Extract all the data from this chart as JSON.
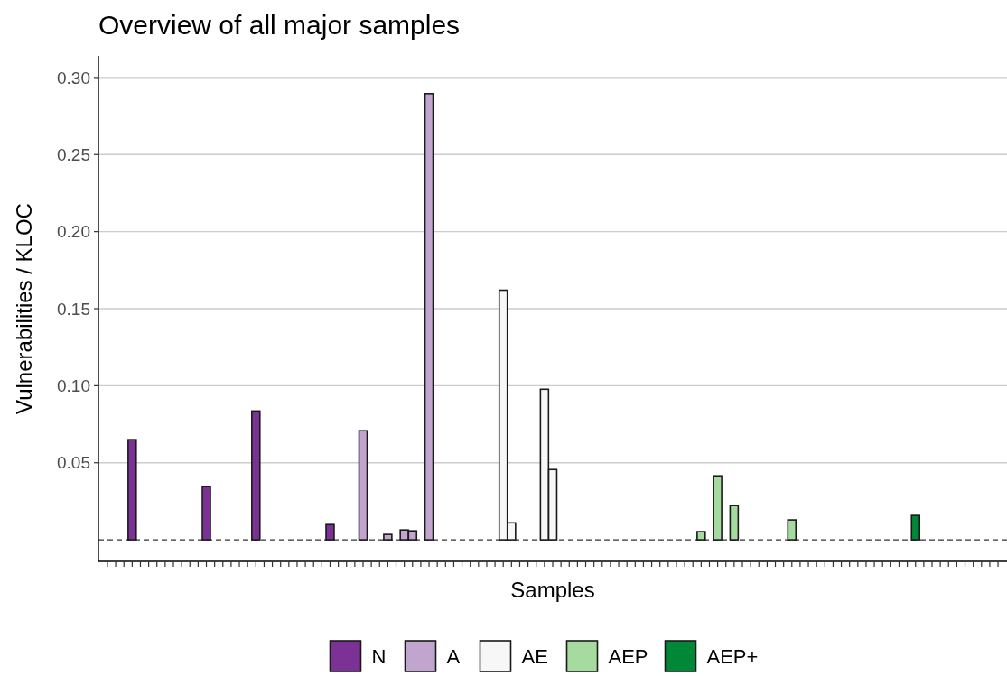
{
  "chart_data": {
    "type": "bar",
    "title": "Overview of all major samples",
    "xlabel": "Samples",
    "ylabel": "Vulnerabilities / KLOC",
    "categories": [
      null,
      null,
      null,
      null,
      null,
      null,
      null,
      null,
      null,
      null,
      null,
      null,
      null,
      null,
      null,
      null,
      null,
      null,
      null,
      null,
      null,
      null,
      null,
      null,
      null,
      null,
      null,
      null,
      null,
      null,
      null,
      null,
      null,
      null,
      null,
      null,
      null,
      null,
      null,
      null,
      null,
      null,
      null,
      null,
      null,
      null,
      null,
      null,
      null,
      null,
      null,
      null,
      null,
      null,
      null,
      null,
      null,
      null,
      null,
      null,
      null,
      null,
      null,
      null,
      null,
      null,
      null,
      null,
      null,
      null,
      null,
      null,
      null,
      null,
      null,
      null,
      null,
      null,
      null,
      null,
      null,
      null,
      null,
      null,
      null,
      null,
      null,
      null,
      null,
      null,
      null,
      null,
      null,
      null,
      null,
      null,
      null,
      null,
      null,
      null,
      null,
      null,
      null,
      null,
      null,
      null,
      null,
      null,
      null
    ],
    "series": [
      {
        "name": "N",
        "color": "#7b3294",
        "values": [
          null,
          null,
          null,
          0.065,
          null,
          null,
          null,
          null,
          null,
          null,
          null,
          null,
          0.0345,
          null,
          null,
          null,
          null,
          null,
          0.0836,
          null,
          null,
          null,
          null,
          null,
          null,
          null,
          null,
          0.0099,
          null,
          null,
          null,
          null,
          null,
          null,
          null,
          null,
          null,
          null,
          null,
          null,
          null,
          null,
          null,
          null,
          null,
          null,
          null,
          null,
          null,
          null,
          null,
          null,
          null,
          null,
          null,
          null,
          null,
          null,
          null,
          null,
          null,
          null,
          null,
          null,
          null,
          null,
          null,
          null,
          null,
          null,
          null,
          null,
          null,
          null,
          null,
          null,
          null,
          null,
          null,
          null,
          null,
          null,
          null,
          null,
          null,
          null,
          null,
          null,
          null,
          null,
          null,
          null,
          null,
          null,
          null,
          null,
          null,
          null,
          null,
          null,
          null,
          null,
          null,
          null,
          null,
          null,
          null,
          null,
          null
        ]
      },
      {
        "name": "A",
        "color": "#c2a5cf",
        "values": [
          null,
          null,
          null,
          null,
          null,
          null,
          null,
          null,
          null,
          null,
          null,
          null,
          null,
          null,
          null,
          null,
          null,
          null,
          null,
          null,
          null,
          null,
          null,
          null,
          null,
          null,
          null,
          null,
          null,
          null,
          null,
          0.0708,
          null,
          null,
          0.0035,
          null,
          0.0064,
          0.0058,
          null,
          0.2895,
          null,
          null,
          null,
          null,
          null,
          null,
          null,
          null,
          null,
          null,
          null,
          null,
          null,
          null,
          null,
          null,
          null,
          null,
          null,
          null,
          null,
          null,
          null,
          null,
          null,
          null,
          null,
          null,
          null,
          null,
          null,
          null,
          null,
          null,
          null,
          null,
          null,
          null,
          null,
          null,
          null,
          null,
          null,
          null,
          null,
          null,
          null,
          null,
          null,
          null,
          null,
          null,
          null,
          null,
          null,
          null,
          null,
          null,
          null,
          null,
          null,
          null,
          null,
          null,
          null,
          null,
          null,
          null,
          null
        ]
      },
      {
        "name": "AE",
        "color": "#f7f7f7",
        "values": [
          null,
          null,
          null,
          null,
          null,
          null,
          null,
          null,
          null,
          null,
          null,
          null,
          null,
          null,
          null,
          null,
          null,
          null,
          null,
          null,
          null,
          null,
          null,
          null,
          null,
          null,
          null,
          null,
          null,
          null,
          null,
          null,
          null,
          null,
          null,
          null,
          null,
          null,
          null,
          null,
          null,
          null,
          null,
          null,
          null,
          null,
          null,
          null,
          0.162,
          0.011,
          null,
          null,
          null,
          0.0977,
          0.0456,
          null,
          null,
          null,
          null,
          null,
          null,
          null,
          null,
          null,
          null,
          null,
          null,
          null,
          null,
          null,
          null,
          null,
          null,
          null,
          null,
          null,
          null,
          null,
          null,
          null,
          null,
          null,
          null,
          null,
          null,
          null,
          null,
          null,
          null,
          null,
          null,
          null,
          null,
          null,
          null,
          null,
          null,
          null,
          null,
          null,
          null,
          null,
          null,
          null,
          null,
          null,
          null,
          null,
          null
        ]
      },
      {
        "name": "AEP",
        "color": "#a6dba0",
        "values": [
          null,
          null,
          null,
          null,
          null,
          null,
          null,
          null,
          null,
          null,
          null,
          null,
          null,
          null,
          null,
          null,
          null,
          null,
          null,
          null,
          null,
          null,
          null,
          null,
          null,
          null,
          null,
          null,
          null,
          null,
          null,
          null,
          null,
          null,
          null,
          null,
          null,
          null,
          null,
          null,
          null,
          null,
          null,
          null,
          null,
          null,
          null,
          null,
          null,
          null,
          null,
          null,
          null,
          null,
          null,
          null,
          null,
          null,
          null,
          null,
          null,
          null,
          null,
          null,
          null,
          null,
          null,
          null,
          null,
          null,
          null,
          null,
          0.0053,
          null,
          0.0415,
          null,
          0.0222,
          null,
          null,
          null,
          null,
          null,
          null,
          0.0129,
          null,
          null,
          null,
          null,
          null,
          null,
          null,
          null,
          null,
          null,
          null,
          null,
          null,
          null,
          null,
          null,
          null,
          null,
          null,
          null,
          null,
          null,
          null,
          null,
          null
        ]
      },
      {
        "name": "AEP+",
        "color": "#008837",
        "values": [
          null,
          null,
          null,
          null,
          null,
          null,
          null,
          null,
          null,
          null,
          null,
          null,
          null,
          null,
          null,
          null,
          null,
          null,
          null,
          null,
          null,
          null,
          null,
          null,
          null,
          null,
          null,
          null,
          null,
          null,
          null,
          null,
          null,
          null,
          null,
          null,
          null,
          null,
          null,
          null,
          null,
          null,
          null,
          null,
          null,
          null,
          null,
          null,
          null,
          null,
          null,
          null,
          null,
          null,
          null,
          null,
          null,
          null,
          null,
          null,
          null,
          null,
          null,
          null,
          null,
          null,
          null,
          null,
          null,
          null,
          null,
          null,
          null,
          null,
          null,
          null,
          null,
          null,
          null,
          null,
          null,
          null,
          null,
          null,
          null,
          null,
          null,
          null,
          null,
          null,
          null,
          null,
          null,
          null,
          null,
          null,
          null,
          null,
          0.0158,
          null,
          null,
          null,
          null,
          null,
          null,
          null,
          null,
          null,
          null
        ]
      }
    ],
    "ylim": [
      -0.014,
      0.314
    ],
    "yticks": [
      {
        "value": 0.05,
        "label": "0.05"
      },
      {
        "value": 0.1,
        "label": "0.10"
      },
      {
        "value": 0.15,
        "label": "0.15"
      },
      {
        "value": 0.2,
        "label": "0.20"
      },
      {
        "value": 0.25,
        "label": "0.25"
      },
      {
        "value": 0.3,
        "label": "0.30"
      }
    ],
    "ref_lines": [
      {
        "axis": "y",
        "value": 0,
        "line_style": "dashed",
        "color": "#333333"
      }
    ],
    "grid": "y",
    "legend": "bottom"
  }
}
